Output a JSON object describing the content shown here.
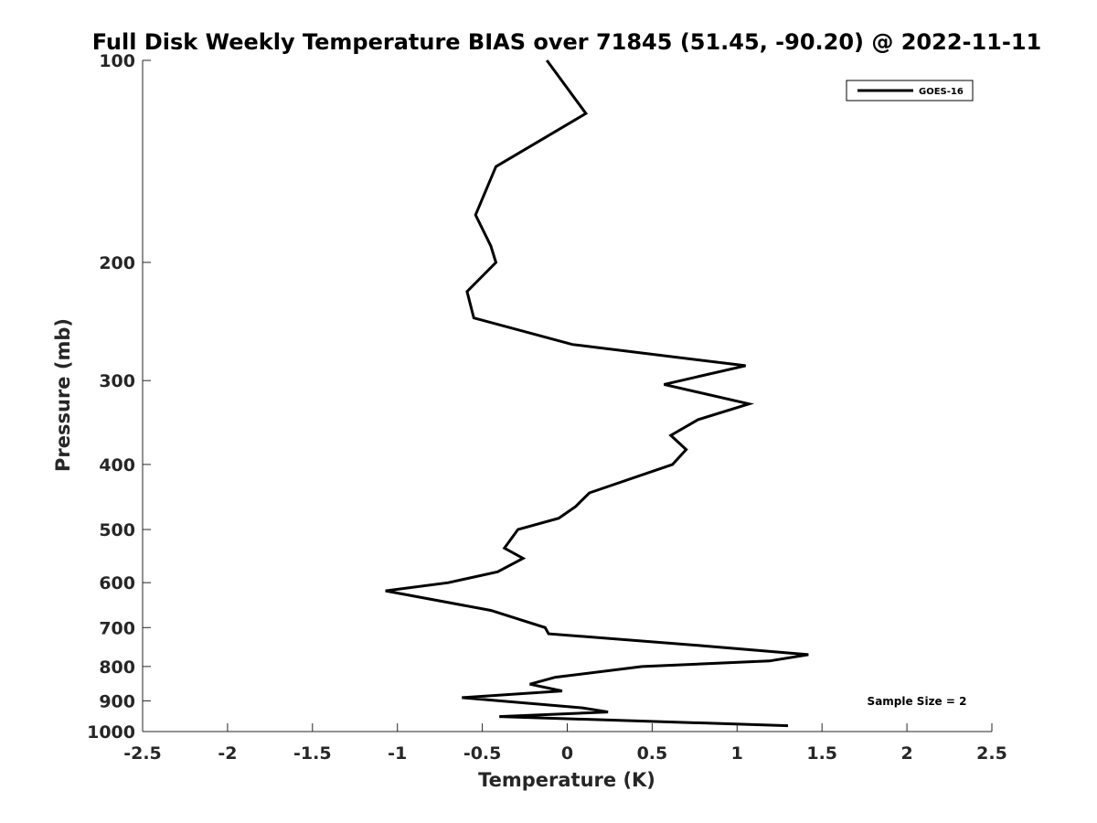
{
  "chart_data": {
    "type": "line",
    "title": "Full Disk Weekly Temperature BIAS over 71845 (51.45, -90.20) @ 2022-11-11",
    "xlabel": "Temperature (K)",
    "ylabel": "Pressure (mb)",
    "xlim": [
      -2.5,
      2.5
    ],
    "ylim": [
      1000,
      100
    ],
    "y_scale": "log",
    "y_inverted": true,
    "grid": false,
    "legend_position": "top-right",
    "x_ticks": [
      "-2.5",
      "-2",
      "-1.5",
      "-1",
      "-0.5",
      "0",
      "0.5",
      "1",
      "1.5",
      "2",
      "2.5"
    ],
    "x_tick_values": [
      -2.5,
      -2,
      -1.5,
      -1,
      -0.5,
      0,
      0.5,
      1,
      1.5,
      2,
      2.5
    ],
    "y_ticks": [
      "100",
      "200",
      "300",
      "400",
      "500",
      "600",
      "700",
      "800",
      "900",
      "1000"
    ],
    "y_tick_values": [
      100,
      200,
      300,
      400,
      500,
      600,
      700,
      800,
      900,
      1000
    ],
    "annotation": "Sample Size = 2",
    "series": [
      {
        "name": "GOES-16",
        "color": "#000000",
        "points": [
          [
            -0.12,
            100
          ],
          [
            0.11,
            120
          ],
          [
            -0.42,
            144
          ],
          [
            -0.54,
            170
          ],
          [
            -0.45,
            189
          ],
          [
            -0.42,
            200
          ],
          [
            -0.59,
            221
          ],
          [
            -0.55,
            242
          ],
          [
            0.03,
            265
          ],
          [
            1.05,
            285
          ],
          [
            0.57,
            304
          ],
          [
            1.07,
            325
          ],
          [
            0.77,
            343
          ],
          [
            0.61,
            362
          ],
          [
            0.7,
            380
          ],
          [
            0.62,
            400
          ],
          [
            0.13,
            441
          ],
          [
            0.05,
            462
          ],
          [
            -0.05,
            481
          ],
          [
            -0.29,
            500
          ],
          [
            -0.37,
            533
          ],
          [
            -0.26,
            552
          ],
          [
            -0.41,
            578
          ],
          [
            -0.7,
            600
          ],
          [
            -1.07,
            617
          ],
          [
            -0.45,
            660
          ],
          [
            -0.13,
            700
          ],
          [
            -0.11,
            715
          ],
          [
            0.8,
            745
          ],
          [
            1.42,
            768
          ],
          [
            1.19,
            785
          ],
          [
            0.44,
            800
          ],
          [
            -0.07,
            830
          ],
          [
            -0.22,
            850
          ],
          [
            -0.03,
            870
          ],
          [
            -0.62,
            890
          ],
          [
            0.09,
            922
          ],
          [
            0.24,
            935
          ],
          [
            -0.4,
            950
          ],
          [
            1.3,
            980
          ]
        ]
      }
    ]
  }
}
